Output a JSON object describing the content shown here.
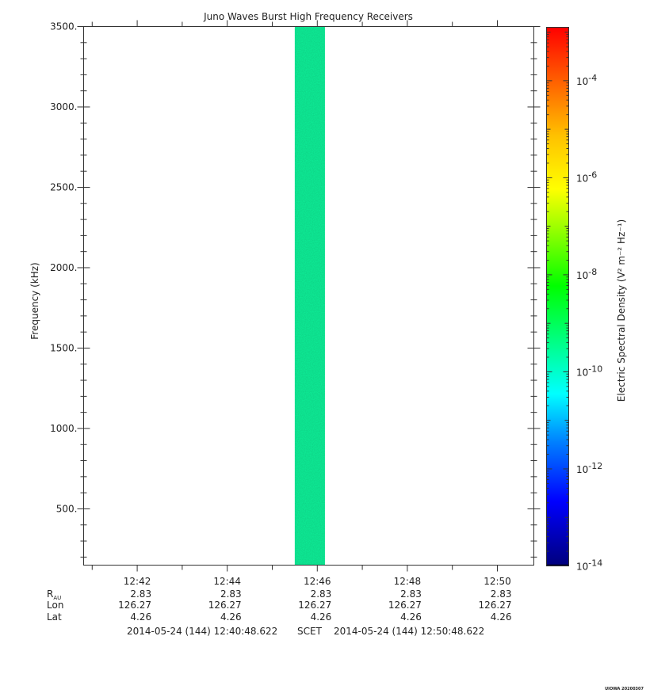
{
  "chart_data": {
    "type": "heatmap",
    "title": "Juno Waves Burst High Frequency Receivers",
    "ylabel": "Frequency (kHz)",
    "ylim": [
      150,
      3500
    ],
    "yticks": [
      {
        "value": 500,
        "label": "500."
      },
      {
        "value": 1000,
        "label": "1000."
      },
      {
        "value": 1500,
        "label": "1500."
      },
      {
        "value": 2000,
        "label": "2000."
      },
      {
        "value": 2500,
        "label": "2500."
      },
      {
        "value": 3000,
        "label": "3000."
      },
      {
        "value": 3500,
        "label": "3500."
      }
    ],
    "xlim_minutes": [
      40.81,
      50.81
    ],
    "xticks": [
      {
        "minute": 42,
        "label": "12:42"
      },
      {
        "minute": 44,
        "label": "12:44"
      },
      {
        "minute": 46,
        "label": "12:46"
      },
      {
        "minute": 48,
        "label": "12:48"
      },
      {
        "minute": 50,
        "label": "12:50"
      }
    ],
    "data_band": {
      "minute_start": 45.5,
      "minute_end": 46.17,
      "freq_start": 150,
      "freq_end": 3500,
      "log10_density": -10.6,
      "color": "#18f29a"
    },
    "colorbar": {
      "label": "Electric Spectral Density (V² m⁻² Hz⁻¹)",
      "log_range": [
        -14,
        -2.9
      ],
      "ticks": [
        {
          "exp": -14,
          "label": "10",
          "sup": "-14"
        },
        {
          "exp": -12,
          "label": "10",
          "sup": "-12"
        },
        {
          "exp": -10,
          "label": "10",
          "sup": "-10"
        },
        {
          "exp": -8,
          "label": "10",
          "sup": "-8"
        },
        {
          "exp": -6,
          "label": "10",
          "sup": "-6"
        },
        {
          "exp": -4,
          "label": "10",
          "sup": "-4"
        }
      ]
    },
    "ephemeris": {
      "rows": [
        {
          "label": "R",
          "sub": "AU",
          "values": [
            "2.83",
            "2.83",
            "2.83",
            "2.83",
            "2.83"
          ]
        },
        {
          "label": "Lon",
          "values": [
            "126.27",
            "126.27",
            "126.27",
            "126.27",
            "126.27"
          ]
        },
        {
          "label": "Lat",
          "values": [
            "4.26",
            "4.26",
            "4.26",
            "4.26",
            "4.26"
          ]
        }
      ]
    },
    "time_range": {
      "start": "2014-05-24 (144) 12:40:48.622",
      "middle": "SCET",
      "end": "2014-05-24 (144) 12:50:48.622"
    },
    "footer_stamp": "UIOWA 20200307"
  }
}
